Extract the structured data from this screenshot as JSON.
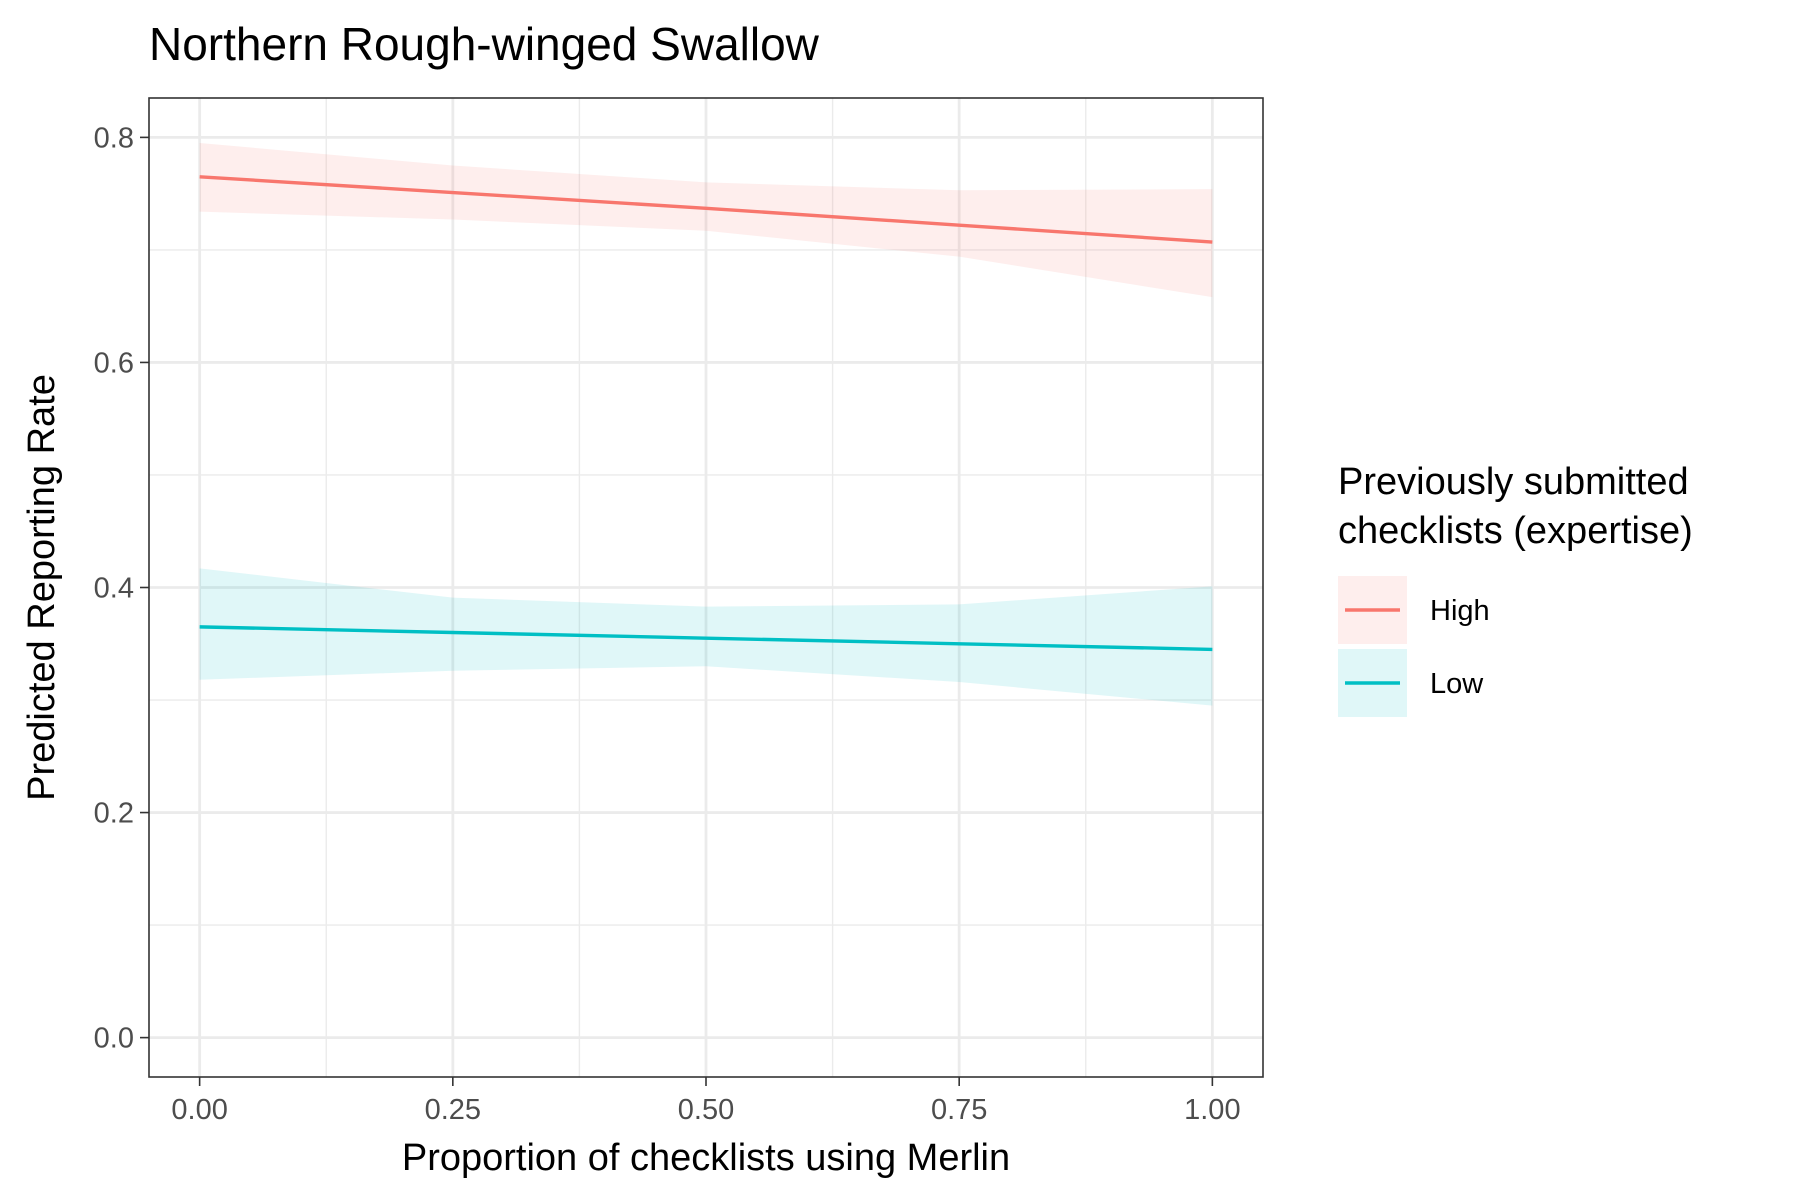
{
  "chart_data": {
    "type": "line",
    "title": "Northern Rough-winged Swallow",
    "xlabel": "Proportion of checklists using Merlin",
    "ylabel": "Predicted Reporting Rate",
    "xlim": [
      -0.05,
      1.05
    ],
    "ylim": [
      -0.035,
      0.835
    ],
    "x_ticks": [
      0.0,
      0.25,
      0.5,
      0.75,
      1.0
    ],
    "x_tick_labels": [
      "0.00",
      "0.25",
      "0.50",
      "0.75",
      "1.00"
    ],
    "y_ticks": [
      0.0,
      0.2,
      0.4,
      0.6,
      0.8
    ],
    "y_tick_labels": [
      "0.0",
      "0.2",
      "0.4",
      "0.6",
      "0.8"
    ],
    "grid": true,
    "legend": {
      "title_lines": [
        "Previously submitted",
        "checklists (expertise)"
      ],
      "position": "right"
    },
    "x": [
      0.0,
      0.25,
      0.5,
      0.75,
      1.0
    ],
    "series": [
      {
        "name": "High",
        "color": "#F8766D",
        "fill_color": "#FDEDEB",
        "values": [
          0.765,
          0.751,
          0.737,
          0.722,
          0.707
        ],
        "lower": [
          0.734,
          0.727,
          0.717,
          0.694,
          0.658
        ],
        "upper": [
          0.795,
          0.775,
          0.76,
          0.753,
          0.754
        ]
      },
      {
        "name": "Low",
        "color": "#00BFC4",
        "fill_color": "#E3F5F7",
        "values": [
          0.365,
          0.36,
          0.355,
          0.35,
          0.345
        ],
        "lower": [
          0.318,
          0.326,
          0.33,
          0.316,
          0.295
        ],
        "upper": [
          0.417,
          0.391,
          0.383,
          0.385,
          0.401
        ]
      }
    ]
  }
}
